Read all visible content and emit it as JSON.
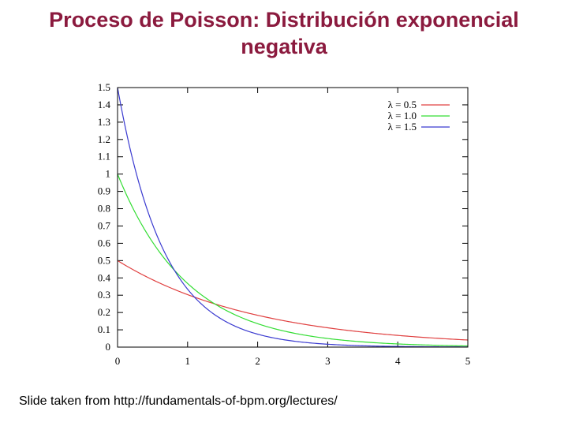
{
  "slide": {
    "title_line1": "Proceso de Poisson: Distribución exponencial",
    "title_line2": "negativa",
    "footer": "Slide taken from http://fundamentals-of-bpm.org/lectures/"
  },
  "chart_data": {
    "type": "line",
    "title": "",
    "xlabel": "",
    "ylabel": "",
    "xlim": [
      0,
      5
    ],
    "ylim": [
      0,
      1.5
    ],
    "xticks": [
      0,
      1,
      2,
      3,
      4,
      5
    ],
    "yticks": [
      0,
      0.1,
      0.2,
      0.3,
      0.4,
      0.5,
      0.6,
      0.7,
      0.8,
      0.9,
      1,
      1.1,
      1.2,
      1.3,
      1.4,
      1.5
    ],
    "grid": false,
    "legend_position": "top-right",
    "function": "lambda * exp(-lambda * x)",
    "series": [
      {
        "name": "λ = 0.5",
        "lambda": 0.5,
        "color": "#e04040"
      },
      {
        "name": "λ = 1.0",
        "lambda": 1.0,
        "color": "#33dd33"
      },
      {
        "name": "λ = 1.5",
        "lambda": 1.5,
        "color": "#3a3ad0"
      }
    ]
  }
}
